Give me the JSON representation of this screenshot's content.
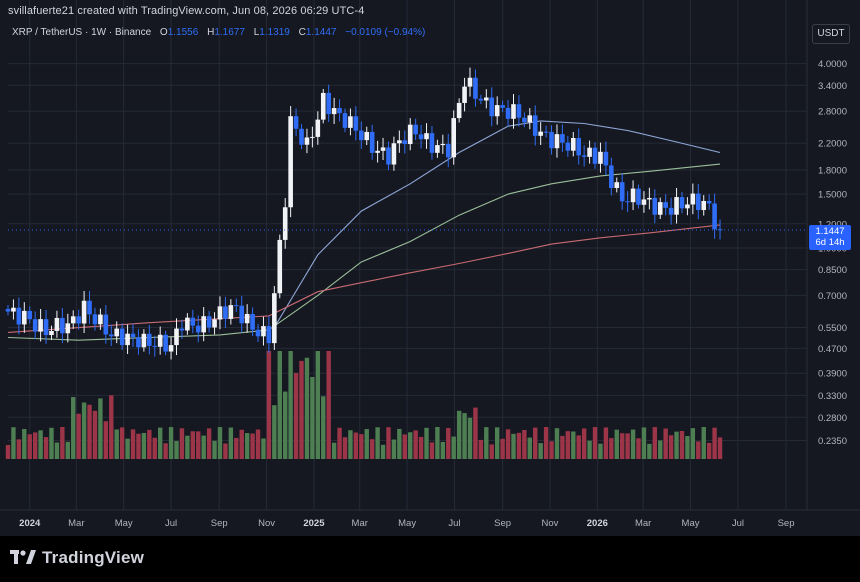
{
  "header": {
    "created_by": "svillafuerte21 created with TradingView.com, Jun 08, 2026 06:29 UTC-4",
    "symbol": "XRP / TetherUS · 1W · Binance",
    "o_label": "O",
    "o_value": "1.1556",
    "h_label": "H",
    "h_value": "1.1677",
    "l_label": "L",
    "l_value": "1.1319",
    "c_label": "C",
    "c_value": "1.1447",
    "change": "−0.0109 (−0.94%)"
  },
  "currency_badge": "USDT",
  "price_badge": {
    "price": "1.1447",
    "countdown": "6d 14h"
  },
  "logo_text": "TradingView",
  "colors": {
    "background": "#151821",
    "up": "#f1f3f6",
    "down": "#2f6df6",
    "volume_up": "#4e7f53",
    "volume_down": "#9c3548",
    "ma_blue": "#8fa8d8",
    "ma_green": "#9bbf9a",
    "ma_red": "#c96a72",
    "grid": "#252a36",
    "price_line": "#2962ff"
  },
  "chart_data": {
    "type": "candlestick",
    "scale": "log",
    "ylim": [
      0.2,
      4.5
    ],
    "y_ticks": [
      "4.0000",
      "3.4000",
      "2.8000",
      "2.2000",
      "1.8000",
      "1.5000",
      "1.2000",
      "1.0000",
      "0.8500",
      "0.7000",
      "0.5500",
      "0.4700",
      "0.3900",
      "0.3300",
      "0.2800",
      "0.2350"
    ],
    "x_ticks": [
      "2024",
      "Mar",
      "May",
      "Jul",
      "Sep",
      "Nov",
      "2025",
      "Mar",
      "May",
      "Jul",
      "Sep",
      "Nov",
      "2026",
      "Mar",
      "May",
      "Jul",
      "Sep"
    ],
    "grid": true,
    "last_price": 1.1447,
    "anchors": [
      [
        "2023-12-04",
        0.62
      ],
      [
        "2023-12-25",
        0.62
      ],
      [
        "2024-01-22",
        0.52
      ],
      [
        "2024-02-19",
        0.56
      ],
      [
        "2024-03-11",
        0.66
      ],
      [
        "2024-04-15",
        0.5
      ],
      [
        "2024-05-20",
        0.52
      ],
      [
        "2024-07-01",
        0.46
      ],
      [
        "2024-07-15",
        0.57
      ],
      [
        "2024-08-19",
        0.58
      ],
      [
        "2024-09-23",
        0.62
      ],
      [
        "2024-11-04",
        0.52
      ],
      [
        "2024-11-11",
        0.7
      ],
      [
        "2024-11-25",
        1.4
      ],
      [
        "2024-12-02",
        2.5
      ],
      [
        "2024-12-23",
        2.2
      ],
      [
        "2025-01-13",
        3.1
      ],
      [
        "2025-02-03",
        2.6
      ],
      [
        "2025-03-10",
        2.3
      ],
      [
        "2025-04-07",
        2.0
      ],
      [
        "2025-05-12",
        2.4
      ],
      [
        "2025-06-23",
        2.1
      ],
      [
        "2025-07-14",
        3.4
      ],
      [
        "2025-08-04",
        3.1
      ],
      [
        "2025-09-01",
        2.85
      ],
      [
        "2025-10-06",
        2.5
      ],
      [
        "2025-11-10",
        2.3
      ],
      [
        "2025-12-15",
        1.95
      ],
      [
        "2026-01-05",
        2.05
      ],
      [
        "2026-02-02",
        1.45
      ],
      [
        "2026-03-09",
        1.38
      ],
      [
        "2026-04-13",
        1.4
      ],
      [
        "2026-05-25",
        1.35
      ],
      [
        "2026-06-08",
        1.1447
      ]
    ],
    "moving_averages": [
      {
        "color": "#8fa8d8",
        "points": [
          [
            "2024-11-11",
            0.55
          ],
          [
            "2025-01-06",
            0.95
          ],
          [
            "2025-03-03",
            1.32
          ],
          [
            "2025-05-05",
            1.62
          ],
          [
            "2025-07-07",
            2.05
          ],
          [
            "2025-09-08",
            2.5
          ],
          [
            "2025-10-20",
            2.6
          ],
          [
            "2025-12-15",
            2.55
          ],
          [
            "2026-02-09",
            2.42
          ],
          [
            "2026-04-13",
            2.22
          ],
          [
            "2026-06-08",
            2.05
          ]
        ]
      },
      {
        "color": "#9bbf9a",
        "points": [
          [
            "2023-12-04",
            0.51
          ],
          [
            "2024-03-04",
            0.5
          ],
          [
            "2024-06-03",
            0.51
          ],
          [
            "2024-09-02",
            0.52
          ],
          [
            "2024-11-04",
            0.54
          ],
          [
            "2025-01-06",
            0.7
          ],
          [
            "2025-03-03",
            0.9
          ],
          [
            "2025-05-05",
            1.05
          ],
          [
            "2025-07-07",
            1.28
          ],
          [
            "2025-09-08",
            1.5
          ],
          [
            "2025-11-03",
            1.62
          ],
          [
            "2026-01-05",
            1.72
          ],
          [
            "2026-03-09",
            1.78
          ],
          [
            "2026-06-08",
            1.88
          ]
        ]
      },
      {
        "color": "#c96a72",
        "points": [
          [
            "2023-12-04",
            0.53
          ],
          [
            "2024-06-03",
            0.57
          ],
          [
            "2024-11-04",
            0.6
          ],
          [
            "2025-01-06",
            0.72
          ],
          [
            "2025-03-03",
            0.77
          ],
          [
            "2025-05-05",
            0.83
          ],
          [
            "2025-07-07",
            0.89
          ],
          [
            "2025-09-08",
            0.96
          ],
          [
            "2025-11-03",
            1.03
          ],
          [
            "2026-01-05",
            1.08
          ],
          [
            "2026-03-09",
            1.12
          ],
          [
            "2026-06-08",
            1.19
          ]
        ]
      }
    ]
  }
}
